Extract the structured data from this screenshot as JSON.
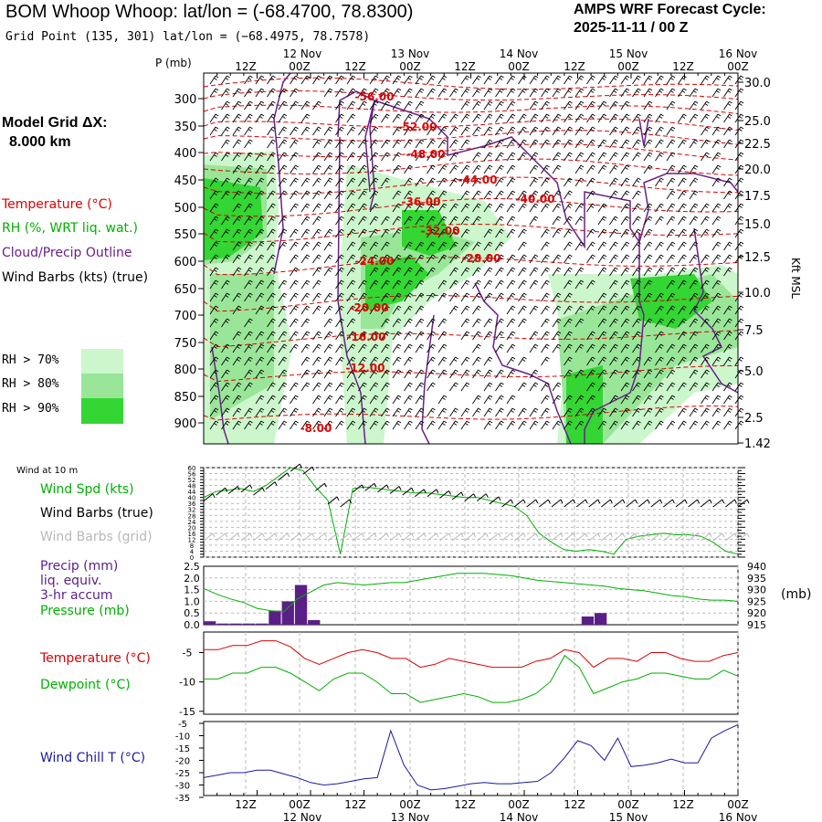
{
  "header": {
    "title": "BOM Whoop Whoop:  lat/lon = (-68.4700, 78.8300)",
    "grid_point": "Grid Point (135, 301) lat/lon = (−68.4975, 78.7578)",
    "cycle_line1": "AMPS WRF Forecast Cycle:",
    "cycle_line2": "2025-11-11 / 00  Z"
  },
  "left_panel": {
    "model_grid_label": "Model Grid ΔX:",
    "model_grid_value": "8.000 km",
    "legend_temperature": "Temperature (°C)",
    "legend_rh": "RH (%, WRT liq. wat.)",
    "legend_cloud": "Cloud/Precip Outline",
    "legend_barbs": "Wind Barbs (kts) (true)",
    "rh70": "RH > 70%",
    "rh80": "RH > 80%",
    "rh90": "RH > 90%",
    "wind10m_label": "Wind at 10 m",
    "wind_spd": "Wind Spd (kts)",
    "wind_barbs_true": "Wind Barbs (true)",
    "wind_barbs_grid": "Wind Barbs (grid)",
    "precip1": "Precip (mm)",
    "precip2": "liq. equiv.",
    "precip3": "3-hr accum",
    "pressure": "Pressure (mb)",
    "temperature": "Temperature (°C)",
    "dewpoint": "Dewpoint (°C)",
    "windchill": "Wind Chill T (°C)",
    "mb_unit": "(mb)",
    "p_axis_title": "P (mb)",
    "kft_label": "Kft MSL"
  },
  "colors": {
    "temperature": "#e00000",
    "rh": "#00b000",
    "cloud": "#6a1f8a",
    "precip": "#5a1f86",
    "windchill": "#1a1aa0",
    "rh70": "#ccf6cc",
    "rh80": "#99e699",
    "rh90": "#33d633",
    "gray": "#b8b8b8"
  },
  "time_axis": {
    "hour_labels": [
      "12Z",
      "00Z",
      "12Z",
      "00Z",
      "12Z",
      "00Z",
      "12Z",
      "00Z",
      "12Z",
      "00Z"
    ],
    "date_labels": [
      "12 Nov",
      "13 Nov",
      "14 Nov",
      "15 Nov",
      "16 Nov"
    ]
  },
  "chart_data": [
    {
      "type": "heatmap",
      "name": "cross-section",
      "pressure_ticks": [
        300,
        350,
        400,
        450,
        500,
        550,
        600,
        650,
        700,
        750,
        800,
        850,
        900
      ],
      "height_ticks": [
        "30.0",
        "25.0",
        "22.5",
        "20.0",
        "17.5",
        "15.0",
        "12.5",
        "10.0",
        "7.5",
        "5.0",
        "2.5",
        "1.42"
      ],
      "temperature_labels": [
        "-56.00",
        "-52.00",
        "-48.00",
        "-44.00",
        "-40.00",
        "-36.00",
        "-32.00",
        "-28.00",
        "-24.00",
        "-20.00",
        "-16.00",
        "-12.00",
        "-8.00"
      ]
    },
    {
      "type": "line",
      "name": "wind-speed-10m",
      "ytick_labels": [
        "60",
        "56",
        "52",
        "48",
        "44",
        "40",
        "36",
        "32",
        "28",
        "24",
        "20",
        "16",
        "12",
        "8",
        "4",
        "0"
      ],
      "values": [
        40,
        44,
        45,
        46,
        44,
        48,
        54,
        60,
        58,
        47,
        38,
        2,
        46,
        47,
        46,
        45,
        44,
        43,
        43,
        42,
        41,
        40,
        40,
        38,
        36,
        34,
        28,
        16,
        10,
        5,
        4,
        5,
        4,
        2,
        12,
        14,
        15,
        16,
        15,
        15,
        14,
        10,
        4,
        2
      ]
    },
    {
      "type": "bar",
      "name": "precip-3hr",
      "ytick_labels": [
        "0.0",
        "0.5",
        "1.0",
        "1.5",
        "2.0",
        "2.5"
      ],
      "right_tick_labels": [
        "940",
        "935",
        "930",
        "925",
        "920",
        "915"
      ],
      "precip_values": [
        0.15,
        0.05,
        0.05,
        0.05,
        0.05,
        0.6,
        1.0,
        1.7,
        0.2,
        0,
        0,
        0,
        0,
        0,
        0,
        0,
        0,
        0,
        0,
        0,
        0,
        0,
        0,
        0,
        0,
        0,
        0,
        0,
        0,
        0.35,
        0.5,
        0,
        0,
        0,
        0,
        0,
        0,
        0,
        0,
        0,
        0
      ],
      "pressure_values": [
        930.5,
        928,
        926,
        924.5,
        922,
        921,
        920.5,
        926,
        929,
        932,
        933,
        932.5,
        932,
        932.5,
        933,
        933,
        934,
        935,
        936,
        937,
        937,
        937,
        936.5,
        936,
        935,
        934,
        933.5,
        933,
        932.5,
        932,
        931.5,
        930.5,
        930,
        929.5,
        928.5,
        927.5,
        927,
        926,
        925.5,
        925.5,
        925
      ]
    },
    {
      "type": "line",
      "name": "temperature-dewpoint",
      "ytick_labels": [
        "-5",
        "-10",
        "-15"
      ],
      "temperature": [
        -4.5,
        -4.5,
        -3.8,
        -3.8,
        -3.0,
        -3.0,
        -4.0,
        -6.0,
        -7.0,
        -6.0,
        -5.0,
        -4.5,
        -5.0,
        -6.0,
        -6.0,
        -7.5,
        -7.0,
        -6.0,
        -6.5,
        -7.0,
        -7.5,
        -7.5,
        -7.5,
        -6.5,
        -6.0,
        -4.5,
        -5.0,
        -7.5,
        -6.0,
        -6.0,
        -6.5,
        -5.0,
        -5.0,
        -6.0,
        -6.5,
        -6.5,
        -5.5,
        -5.0
      ],
      "dewpoint": [
        -9.5,
        -9.5,
        -8.5,
        -8.5,
        -7.5,
        -7.5,
        -8.5,
        -10.0,
        -11.5,
        -9.5,
        -8.5,
        -8.5,
        -10.0,
        -12.0,
        -12.0,
        -13.5,
        -13.0,
        -12.5,
        -12.0,
        -12.5,
        -13.5,
        -13.5,
        -13.0,
        -12.0,
        -10.0,
        -5.5,
        -7.5,
        -12.0,
        -11.0,
        -10.0,
        -9.5,
        -8.5,
        -8.5,
        -9.0,
        -9.5,
        -9.5,
        -8.0,
        -9.0
      ]
    },
    {
      "type": "line",
      "name": "wind-chill",
      "ytick_labels": [
        "-5",
        "-10",
        "-15",
        "-20",
        "-25",
        "-30",
        "-35"
      ],
      "values": [
        -27,
        -26,
        -25,
        -25,
        -24,
        -24,
        -25.5,
        -27,
        -29,
        -30,
        -29.5,
        -28.5,
        -27.5,
        -27,
        -8,
        -22,
        -30,
        -32,
        -31.5,
        -30.5,
        -29.5,
        -29,
        -29.5,
        -29.5,
        -29,
        -28.5,
        -25,
        -19,
        -12,
        -14,
        -20,
        -11,
        -22.5,
        -22,
        -21,
        -19.5,
        -21,
        -21,
        -11,
        -8,
        -5.5
      ]
    }
  ]
}
